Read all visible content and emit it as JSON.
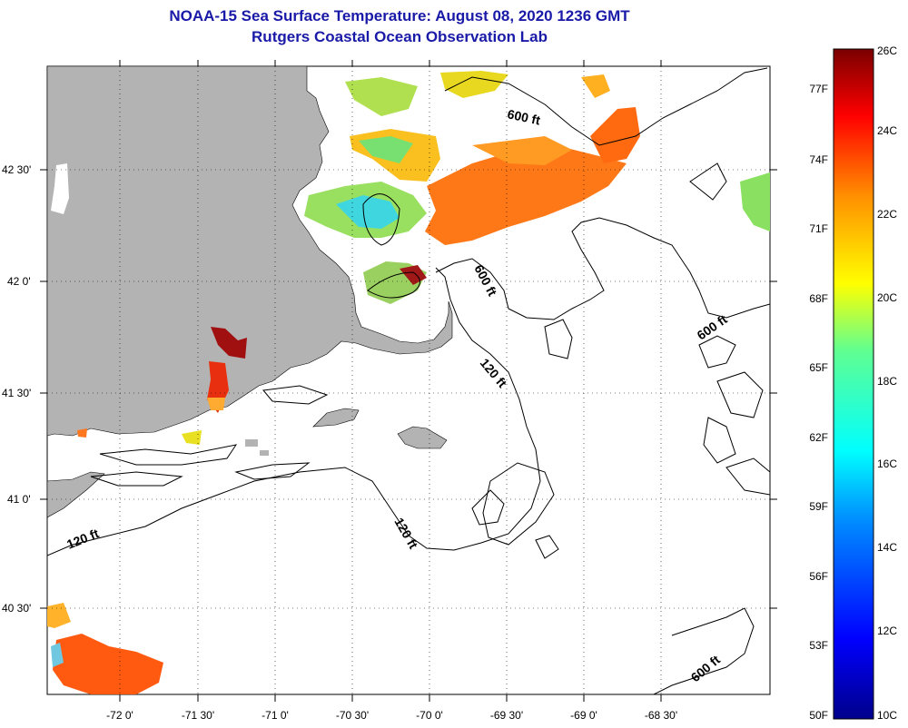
{
  "header": {
    "title": "NOAA-15 Sea Surface Temperature:  August 08, 2020 1236 GMT",
    "subtitle": "Rutgers Coastal Ocean Observation Lab"
  },
  "lat_labels": [
    "42 30'",
    "42 0'",
    "41 30'",
    "41 0'",
    "40 30'"
  ],
  "lon_labels": [
    "-72 0'",
    "-71 30'",
    "-71 0'",
    "-70 30'",
    "-70 0'",
    "-69 30'",
    "-69 0'",
    "-68 30'"
  ],
  "contour_labels": [
    "600 ft",
    "600 ft",
    "600 ft",
    "600 ft",
    "120 ft",
    "120 ft",
    "120 ft"
  ],
  "colorbar": {
    "fahrenheit": [
      "77F",
      "74F",
      "71F",
      "68F",
      "65F",
      "62F",
      "59F",
      "56F",
      "53F",
      "50F"
    ],
    "celsius": [
      "26C",
      "24C",
      "22C",
      "20C",
      "18C",
      "16C",
      "14C",
      "12C",
      "10C"
    ]
  },
  "colors": {
    "title": "#1a1aa8",
    "land": "#b3b3b3"
  }
}
